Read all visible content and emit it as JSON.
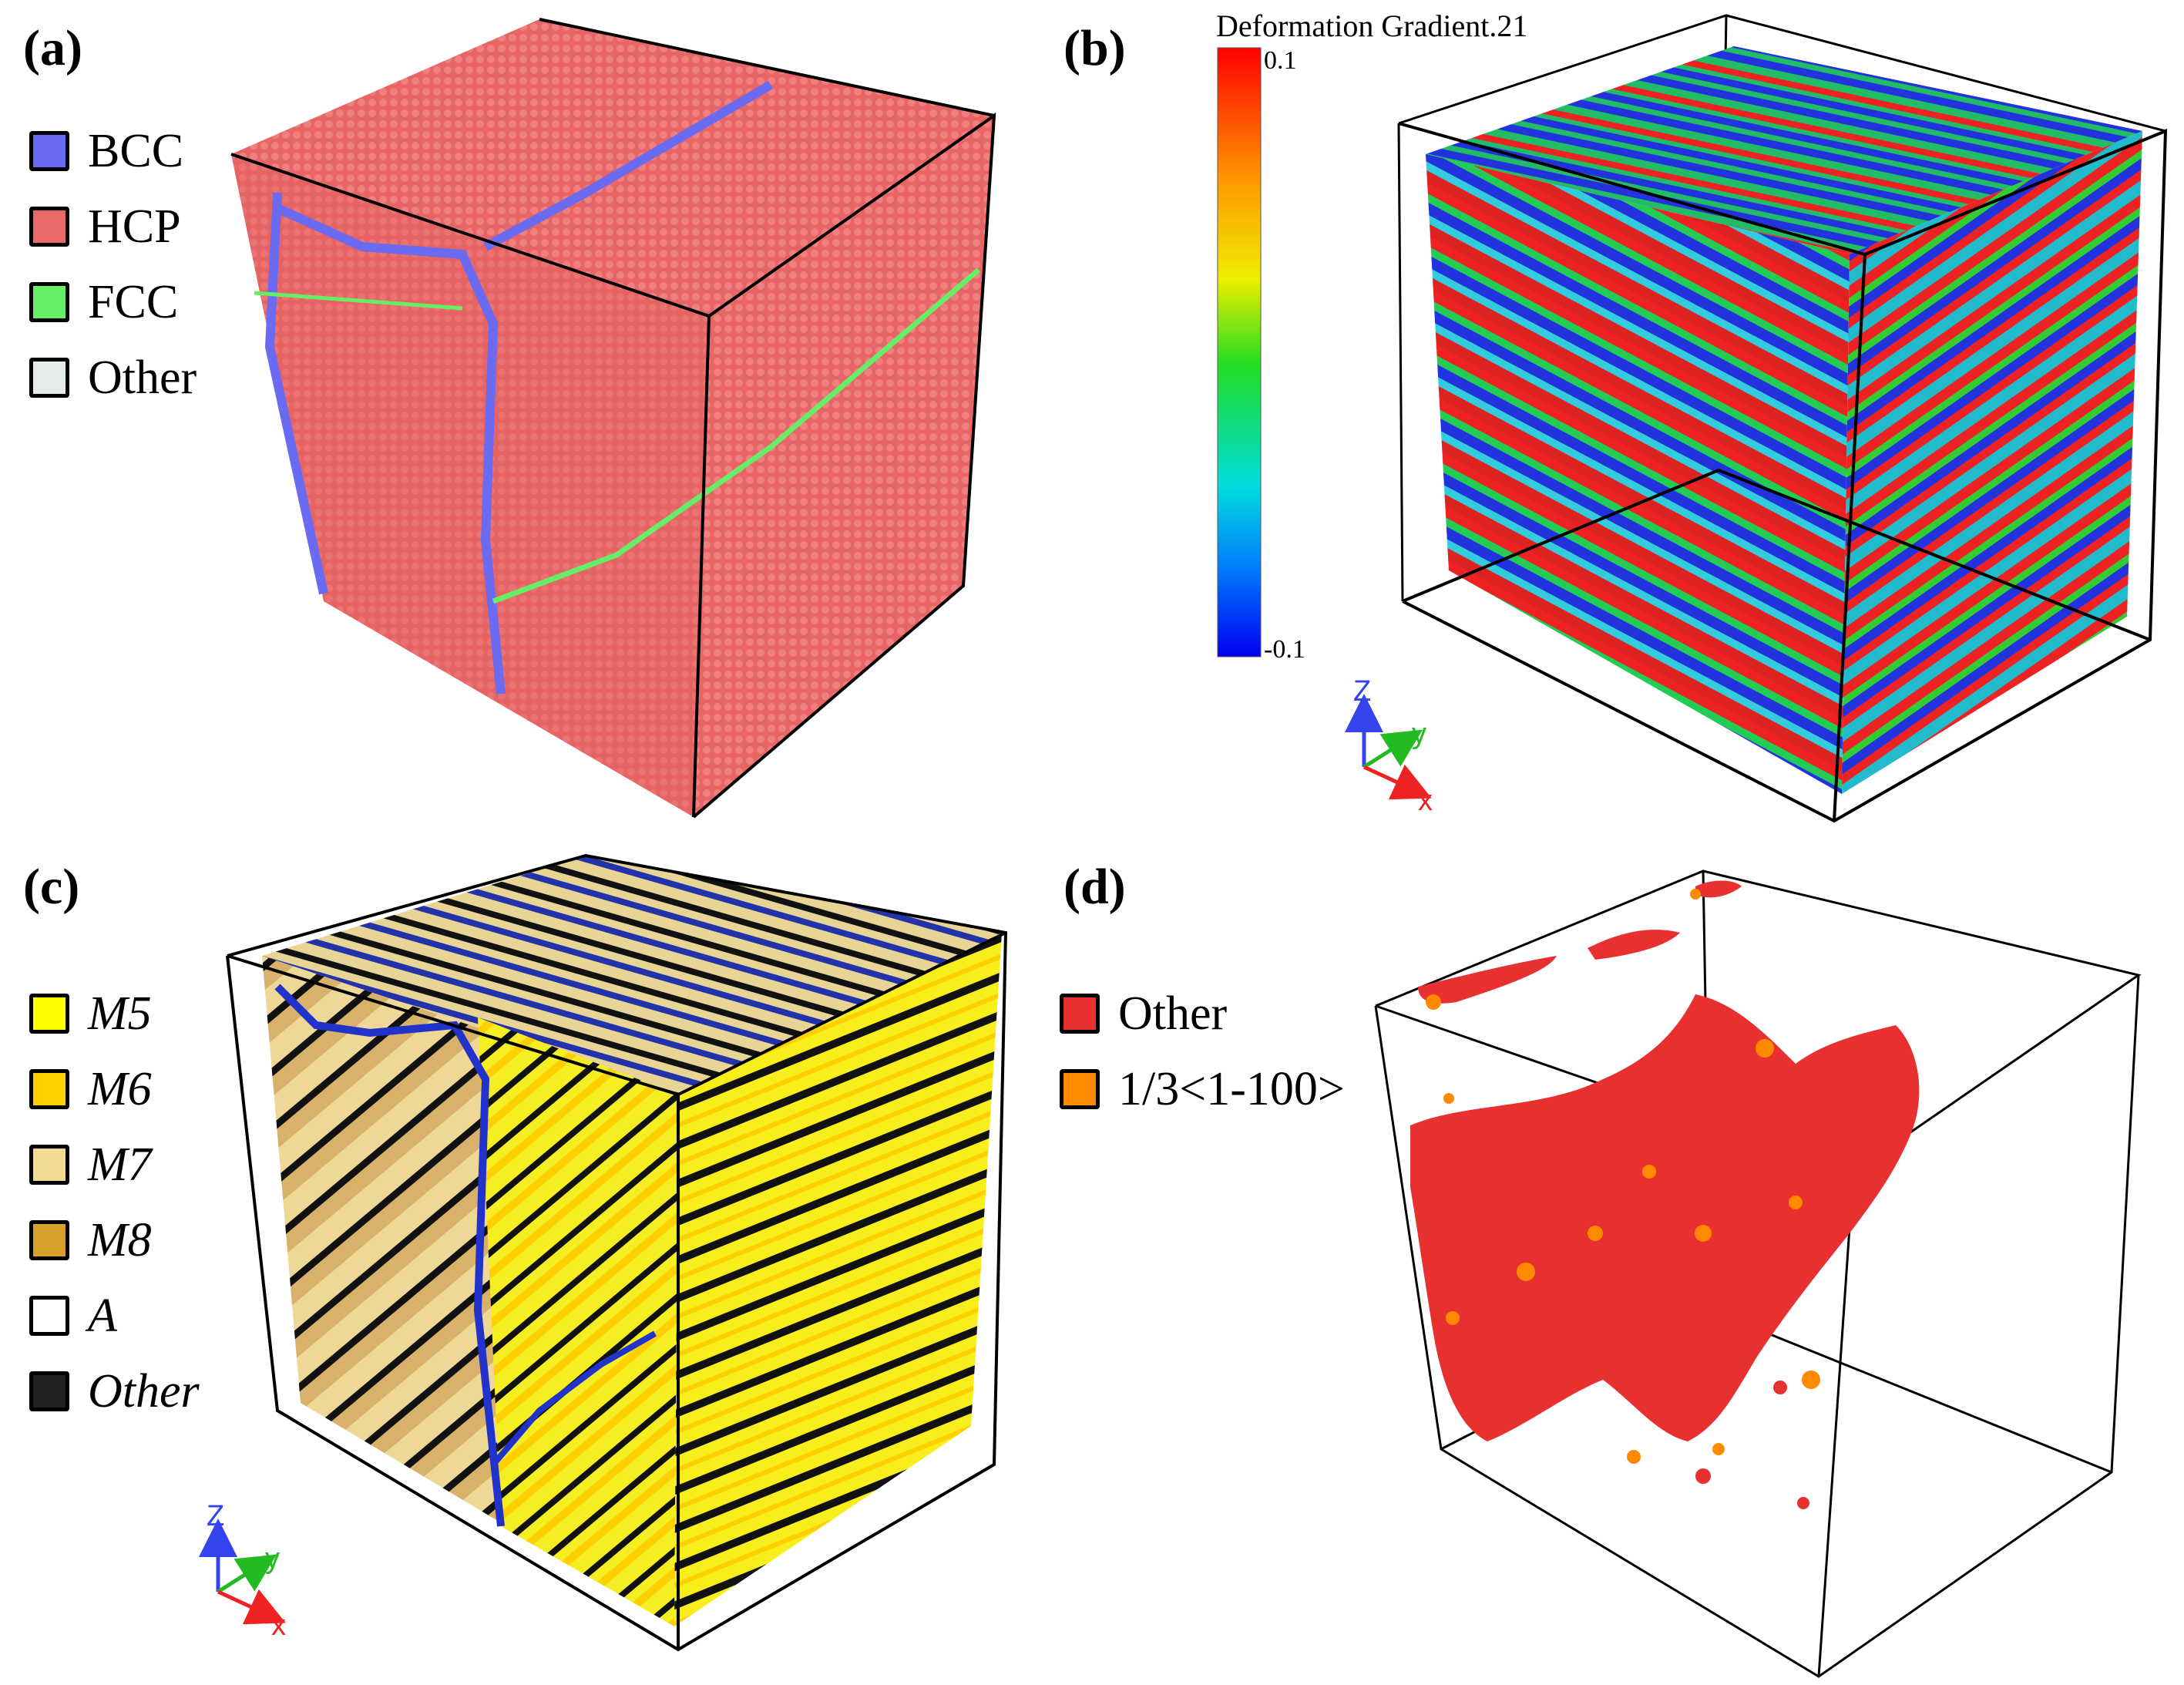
{
  "panels": {
    "a": {
      "label": "(a)",
      "legend": [
        {
          "name": "BCC",
          "color": "#6b6bf2"
        },
        {
          "name": "HCP",
          "color": "#ea6a6a"
        },
        {
          "name": "FCC",
          "color": "#66ee66"
        },
        {
          "name": "Other",
          "color": "#e6ece8"
        }
      ]
    },
    "b": {
      "label": "(b)",
      "colorbar": {
        "title": "Deformation Gradient.21",
        "max_label": "0.1",
        "min_label": "-0.1"
      },
      "axes": {
        "z": "Z",
        "y": "y",
        "x": "x"
      }
    },
    "c": {
      "label": "(c)",
      "legend": [
        {
          "name": "M5",
          "color": "#ffff00"
        },
        {
          "name": "M6",
          "color": "#ffd000"
        },
        {
          "name": "M7",
          "color": "#f2dc92"
        },
        {
          "name": "M8",
          "color": "#d8a12c"
        },
        {
          "name": "A",
          "color": "#ffffff"
        },
        {
          "name": "Other",
          "color": "#222222"
        }
      ],
      "axes": {
        "z": "Z",
        "y": "y",
        "x": "x"
      }
    },
    "d": {
      "label": "(d)",
      "legend": [
        {
          "name": "Other",
          "color": "#e83030"
        },
        {
          "name": "1/3<1-100>",
          "color": "#ff8a00"
        }
      ]
    }
  }
}
